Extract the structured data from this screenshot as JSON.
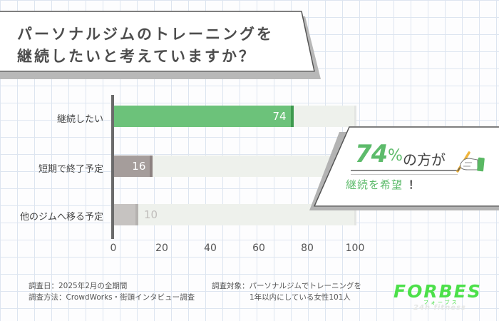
{
  "title": {
    "line1": "パーソナルジムのトレーニングを",
    "line2": "継続したいと考えていますか？"
  },
  "chart_data": {
    "type": "bar",
    "orientation": "horizontal",
    "title": "パーソナルジムのトレーニングを継続したいと考えていますか？",
    "categories": [
      "継続したい",
      "短期で終了予定",
      "他のジムへ移る予定"
    ],
    "values": [
      74,
      16,
      10
    ],
    "xlabel": "",
    "ylabel": "",
    "xlim": [
      0,
      100
    ],
    "x_ticks": [
      "0",
      "20",
      "40",
      "60",
      "80",
      "100"
    ],
    "grid": false,
    "legend": null,
    "unit": "%",
    "colors": [
      "#6cc27a",
      "#a59d9b",
      "#c6c3c1"
    ],
    "track_color": "#eef1ec"
  },
  "bars": [
    {
      "label": "継続したい",
      "value": "74",
      "pct": 74,
      "color": "#6cc27a",
      "cap": "#3e9a4e",
      "val_color": "#ffffff"
    },
    {
      "label": "短期で終了予定",
      "value": "16",
      "pct": 16,
      "color": "#a59d9b",
      "cap": "#8c8180",
      "val_color": "#ffffff"
    },
    {
      "label": "他のジムへ移る予定",
      "value": "10",
      "pct": 10,
      "color": "#c6c3c1",
      "cap": "#b5b2b0",
      "val_color": "#c0bdbb"
    }
  ],
  "ticks": [
    "0",
    "20",
    "40",
    "60",
    "80",
    "100"
  ],
  "callout": {
    "number": "74",
    "percent": "%",
    "suffix": "の方が",
    "subtext": "継続を希望",
    "exclaim": "！",
    "accent": "#5dbb6b"
  },
  "footnotes": {
    "date": "調査日：2025年2月の全期間",
    "method": "調査方法：CrowdWorks・街頭インタビュー調査",
    "target_line1": "調査対象：パーソナルジムでトレーニングを",
    "target_line2": "1年以内にしている女性101人"
  },
  "logo": {
    "main": "FORBES",
    "kana": "フォーブス",
    "sub": "24h fitness",
    "color": "#4ce04a"
  }
}
